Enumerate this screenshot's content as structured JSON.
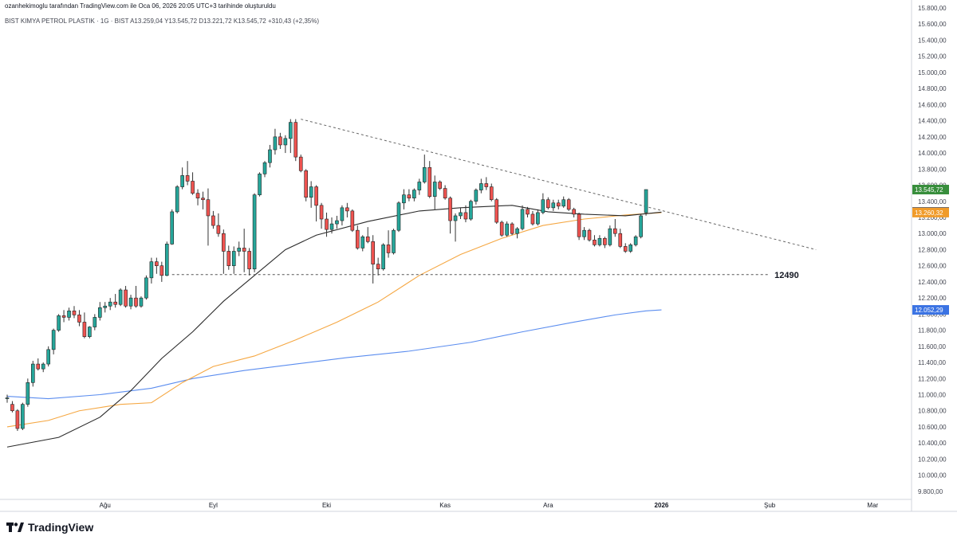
{
  "header": {
    "attribution": "ozanhekimoglu tarafından TradingView.com ile Oca 06, 2026 20:05 UTC+3 tarihinde oluşturuldu",
    "symbol_line": "BIST KIMYA PETROL PLASTIK · 1G · BIST  A13.259,04  Y13.545,72  D13.221,72  K13.545,72  +310,43 (+2,35%)"
  },
  "branding": {
    "name": "TradingView",
    "icon": "tradingview-logo-icon"
  },
  "colors": {
    "up": "#26a69a",
    "up_dark": "#2e7d32",
    "down": "#ef5350",
    "sma_black": "#2b2b2b",
    "sma_orange": "#f5a742",
    "sma_blue": "#5b8def",
    "price_tag": "#388e3c",
    "black_tag": "#131722",
    "orange_tag": "#f09b2a",
    "blue_tag": "#3b73e3"
  },
  "chart_data": {
    "type": "candlestick",
    "ylim": [
      9700,
      15800
    ],
    "y_ticks": [
      9800,
      10000,
      10200,
      10400,
      10600,
      10800,
      11000,
      11200,
      11400,
      11600,
      11800,
      12000,
      12200,
      12400,
      12600,
      12800,
      13000,
      13200,
      13400,
      13600,
      13800,
      14000,
      14200,
      14400,
      14600,
      14800,
      15000,
      15200,
      15400,
      15600,
      15800
    ],
    "y_tick_labels": [
      "9.800,00",
      "10.000,00",
      "10.200,00",
      "10.400,00",
      "10.600,00",
      "10.800,00",
      "11.000,00",
      "11.200,00",
      "11.400,00",
      "11.600,00",
      "11.800,00",
      "12.000,00",
      "12.200,00",
      "12.400,00",
      "12.600,00",
      "12.800,00",
      "13.000,00",
      "13.200,00",
      "13.400,00",
      "13.600,00",
      "13.800,00",
      "14.000,00",
      "14.200,00",
      "14.400,00",
      "14.600,00",
      "14.800,00",
      "15.000,00",
      "15.200,00",
      "15.400,00",
      "15.600,00",
      "15.800,00"
    ],
    "x_labels": [
      {
        "label": "Ağu",
        "bar": 19,
        "bold": false
      },
      {
        "label": "Eyl",
        "bar": 40,
        "bold": false
      },
      {
        "label": "Eki",
        "bar": 62,
        "bold": false
      },
      {
        "label": "Kas",
        "bar": 85,
        "bold": false
      },
      {
        "label": "Ara",
        "bar": 105,
        "bold": false
      },
      {
        "label": "2026",
        "bar": 127,
        "bold": true
      },
      {
        "label": "Şub",
        "bar": 148,
        "bold": false
      },
      {
        "label": "Mar",
        "bar": 168,
        "bold": false
      }
    ],
    "total_slots": 176,
    "candles": [
      [
        10950,
        11000,
        10900,
        10960
      ],
      [
        10880,
        10920,
        10780,
        10800
      ],
      [
        10800,
        10820,
        10550,
        10580
      ],
      [
        10580,
        10900,
        10560,
        10880
      ],
      [
        10880,
        11200,
        10850,
        11150
      ],
      [
        11150,
        11420,
        11100,
        11380
      ],
      [
        11380,
        11450,
        11300,
        11320
      ],
      [
        11320,
        11400,
        11280,
        11380
      ],
      [
        11380,
        11600,
        11350,
        11560
      ],
      [
        11560,
        11820,
        11500,
        11800
      ],
      [
        11800,
        12000,
        11780,
        11980
      ],
      [
        11980,
        12050,
        11900,
        11960
      ],
      [
        11960,
        12080,
        11920,
        12040
      ],
      [
        12040,
        12100,
        11950,
        11990
      ],
      [
        11990,
        12050,
        11850,
        11900
      ],
      [
        11900,
        12020,
        11700,
        11720
      ],
      [
        11720,
        11850,
        11700,
        11840
      ],
      [
        11840,
        12000,
        11800,
        11960
      ],
      [
        11960,
        12150,
        11920,
        12080
      ],
      [
        12080,
        12150,
        12020,
        12100
      ],
      [
        12100,
        12200,
        12050,
        12150
      ],
      [
        12150,
        12250,
        12080,
        12120
      ],
      [
        12120,
        12320,
        12100,
        12300
      ],
      [
        12300,
        12350,
        12080,
        12100
      ],
      [
        12100,
        12240,
        12060,
        12200
      ],
      [
        12200,
        12350,
        12080,
        12100
      ],
      [
        12100,
        12220,
        12080,
        12200
      ],
      [
        12200,
        12480,
        12180,
        12450
      ],
      [
        12450,
        12700,
        12380,
        12650
      ],
      [
        12650,
        12700,
        12500,
        12600
      ],
      [
        12600,
        12650,
        12400,
        12480
      ],
      [
        12480,
        12900,
        12470,
        12870
      ],
      [
        12870,
        13300,
        12860,
        13270
      ],
      [
        13270,
        13600,
        13250,
        13580
      ],
      [
        13580,
        13820,
        13550,
        13720
      ],
      [
        13720,
        13900,
        13600,
        13650
      ],
      [
        13650,
        13760,
        13480,
        13500
      ],
      [
        13500,
        13550,
        13350,
        13440
      ],
      [
        13440,
        13520,
        13300,
        13420
      ],
      [
        13420,
        13560,
        12850,
        13220
      ],
      [
        13220,
        13280,
        13060,
        13100
      ],
      [
        13100,
        13250,
        12960,
        13000
      ],
      [
        13000,
        13050,
        12500,
        12780
      ],
      [
        12780,
        12850,
        12550,
        12600
      ],
      [
        12600,
        12840,
        12500,
        12780
      ],
      [
        12780,
        12900,
        12720,
        12820
      ],
      [
        12820,
        13060,
        12520,
        12780
      ],
      [
        12780,
        12820,
        12480,
        12560
      ],
      [
        12560,
        13500,
        12520,
        13480
      ],
      [
        13480,
        13760,
        13460,
        13740
      ],
      [
        13740,
        13900,
        13700,
        13880
      ],
      [
        13880,
        14100,
        13820,
        14040
      ],
      [
        14040,
        14300,
        13980,
        14200
      ],
      [
        14200,
        14250,
        14050,
        14100
      ],
      [
        14100,
        14220,
        14000,
        14180
      ],
      [
        14180,
        14420,
        14000,
        14380
      ],
      [
        14380,
        14420,
        13900,
        13950
      ],
      [
        13950,
        13980,
        13760,
        13780
      ],
      [
        13780,
        13800,
        13400,
        13450
      ],
      [
        13450,
        13650,
        13320,
        13580
      ],
      [
        13580,
        13600,
        13150,
        13350
      ],
      [
        13350,
        13380,
        13060,
        13180
      ],
      [
        13180,
        13260,
        12960,
        13050
      ],
      [
        13050,
        13200,
        13000,
        13120
      ],
      [
        13120,
        13220,
        13060,
        13160
      ],
      [
        13160,
        13350,
        13100,
        13320
      ],
      [
        13320,
        13380,
        13200,
        13280
      ],
      [
        13280,
        13300,
        13020,
        13040
      ],
      [
        13040,
        13100,
        12800,
        12820
      ],
      [
        12820,
        12980,
        12780,
        12960
      ],
      [
        12960,
        13080,
        12880,
        12900
      ],
      [
        12900,
        12980,
        12380,
        12620
      ],
      [
        12620,
        12700,
        12480,
        12560
      ],
      [
        12560,
        12880,
        12540,
        12860
      ],
      [
        12860,
        13040,
        12700,
        12760
      ],
      [
        12760,
        13060,
        12740,
        13040
      ],
      [
        13040,
        13400,
        13020,
        13380
      ],
      [
        13380,
        13550,
        13300,
        13480
      ],
      [
        13480,
        13550,
        13400,
        13440
      ],
      [
        13440,
        13560,
        13400,
        13540
      ],
      [
        13540,
        13680,
        13480,
        13640
      ],
      [
        13640,
        13980,
        13620,
        13820
      ],
      [
        13820,
        13900,
        13440,
        13460
      ],
      [
        13460,
        13720,
        13300,
        13640
      ],
      [
        13640,
        13660,
        13540,
        13560
      ],
      [
        13560,
        13600,
        13420,
        13440
      ],
      [
        13440,
        13460,
        13000,
        13160
      ],
      [
        13160,
        13250,
        12900,
        13220
      ],
      [
        13220,
        13320,
        13180,
        13260
      ],
      [
        13260,
        13350,
        13140,
        13180
      ],
      [
        13180,
        13420,
        13160,
        13400
      ],
      [
        13400,
        13560,
        13360,
        13540
      ],
      [
        13540,
        13680,
        13500,
        13620
      ],
      [
        13620,
        13700,
        13540,
        13580
      ],
      [
        13580,
        13620,
        13400,
        13420
      ],
      [
        13420,
        13440,
        13120,
        13140
      ],
      [
        13140,
        13160,
        12960,
        12980
      ],
      [
        12980,
        13150,
        12960,
        13120
      ],
      [
        13120,
        13140,
        12980,
        13000
      ],
      [
        13000,
        13080,
        12940,
        13060
      ],
      [
        13060,
        13350,
        13040,
        13300
      ],
      [
        13300,
        13330,
        13200,
        13240
      ],
      [
        13240,
        13280,
        13100,
        13120
      ],
      [
        13120,
        13300,
        13100,
        13260
      ],
      [
        13260,
        13500,
        13240,
        13420
      ],
      [
        13420,
        13450,
        13300,
        13320
      ],
      [
        13320,
        13420,
        13280,
        13380
      ],
      [
        13380,
        13420,
        13300,
        13340
      ],
      [
        13340,
        13460,
        13320,
        13420
      ],
      [
        13420,
        13440,
        13280,
        13300
      ],
      [
        13300,
        13320,
        13200,
        13240
      ],
      [
        13240,
        13260,
        12920,
        12960
      ],
      [
        12960,
        13080,
        12920,
        13040
      ],
      [
        13040,
        13060,
        12900,
        12920
      ],
      [
        12920,
        12980,
        12840,
        12860
      ],
      [
        12860,
        12980,
        12840,
        12940
      ],
      [
        12940,
        12960,
        12820,
        12860
      ],
      [
        12860,
        13100,
        12840,
        13060
      ],
      [
        13060,
        13180,
        12960,
        13000
      ],
      [
        13000,
        13060,
        12820,
        12840
      ],
      [
        12840,
        12880,
        12760,
        12780
      ],
      [
        12780,
        12880,
        12760,
        12860
      ],
      [
        12860,
        12980,
        12840,
        12960
      ],
      [
        12960,
        13240,
        12940,
        13220
      ],
      [
        13259,
        13546,
        13222,
        13546
      ]
    ],
    "sma_black": [
      [
        0,
        10350
      ],
      [
        10,
        10470
      ],
      [
        18,
        10720
      ],
      [
        24,
        11050
      ],
      [
        30,
        11450
      ],
      [
        36,
        11780
      ],
      [
        42,
        12160
      ],
      [
        48,
        12480
      ],
      [
        54,
        12800
      ],
      [
        60,
        12980
      ],
      [
        70,
        13150
      ],
      [
        80,
        13280
      ],
      [
        88,
        13320
      ],
      [
        98,
        13350
      ],
      [
        105,
        13270
      ],
      [
        112,
        13240
      ],
      [
        120,
        13220
      ],
      [
        127,
        13266
      ]
    ],
    "sma_orange": [
      [
        0,
        10600
      ],
      [
        8,
        10680
      ],
      [
        14,
        10800
      ],
      [
        22,
        10880
      ],
      [
        28,
        10900
      ],
      [
        34,
        11150
      ],
      [
        40,
        11350
      ],
      [
        48,
        11480
      ],
      [
        56,
        11680
      ],
      [
        64,
        11900
      ],
      [
        72,
        12150
      ],
      [
        80,
        12480
      ],
      [
        88,
        12740
      ],
      [
        96,
        12940
      ],
      [
        104,
        13100
      ],
      [
        112,
        13180
      ],
      [
        120,
        13230
      ],
      [
        127,
        13260
      ]
    ],
    "sma_blue": [
      [
        0,
        10980
      ],
      [
        8,
        10950
      ],
      [
        18,
        11000
      ],
      [
        28,
        11080
      ],
      [
        36,
        11200
      ],
      [
        46,
        11300
      ],
      [
        56,
        11380
      ],
      [
        66,
        11460
      ],
      [
        78,
        11540
      ],
      [
        90,
        11650
      ],
      [
        100,
        11780
      ],
      [
        110,
        11900
      ],
      [
        118,
        11990
      ],
      [
        124,
        12040
      ],
      [
        127,
        12052
      ]
    ],
    "trendline": {
      "from": [
        57,
        14420
      ],
      "to": [
        157,
        12800
      ]
    },
    "support": {
      "value": 12490,
      "label": "12490",
      "from_bar": 32,
      "to_bar": 148
    },
    "price_tags": [
      {
        "value": 13545.72,
        "label": "13.545,72",
        "color": "#388e3c"
      },
      {
        "value": 13266.01,
        "label": "13.266,01",
        "color": "#131722"
      },
      {
        "value": 13260.32,
        "label": "13.260,32",
        "color": "#f09b2a"
      },
      {
        "value": 12052.29,
        "label": "12.052,29",
        "color": "#3b73e3"
      }
    ]
  }
}
